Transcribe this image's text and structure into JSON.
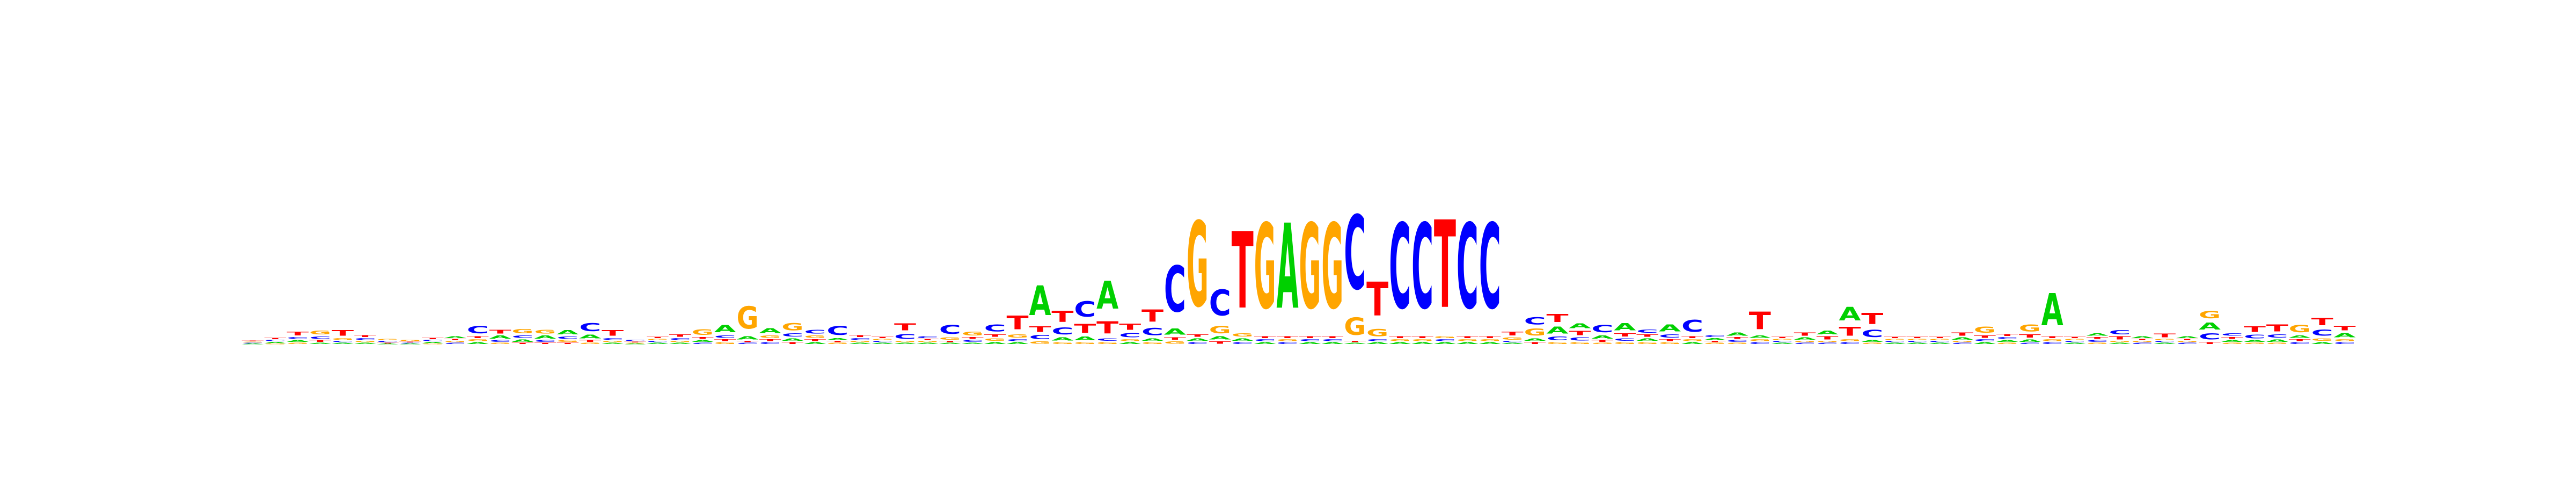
{
  "chart_data": {
    "type": "sequence-logo",
    "title": "",
    "xlabel": "",
    "ylabel": "",
    "alphabet": [
      "A",
      "C",
      "G",
      "T"
    ],
    "colors": {
      "A": "#00d000",
      "C": "#0000ff",
      "G": "#ffa500",
      "T": "#ff0000"
    },
    "ylim": [
      0,
      2
    ],
    "grid": false,
    "axes_visible": false,
    "positions": [
      {
        "pos": 1,
        "heights": {
          "A": 0.01,
          "C": 0.01,
          "G": 0.01,
          "T": 0.01
        }
      },
      {
        "pos": 2,
        "heights": {
          "A": 0.02,
          "C": 0.02,
          "G": 0.01,
          "T": 0.02
        }
      },
      {
        "pos": 3,
        "heights": {
          "A": 0.03,
          "C": 0.03,
          "G": 0.02,
          "T": 0.06
        }
      },
      {
        "pos": 4,
        "heights": {
          "A": 0.02,
          "C": 0.04,
          "G": 0.06,
          "T": 0.03
        }
      },
      {
        "pos": 5,
        "heights": {
          "A": 0.02,
          "C": 0.02,
          "G": 0.03,
          "T": 0.09
        }
      },
      {
        "pos": 6,
        "heights": {
          "A": 0.02,
          "C": 0.03,
          "G": 0.02,
          "T": 0.03
        }
      },
      {
        "pos": 7,
        "heights": {
          "A": 0.01,
          "C": 0.02,
          "G": 0.02,
          "T": 0.01
        }
      },
      {
        "pos": 8,
        "heights": {
          "A": 0.01,
          "C": 0.01,
          "G": 0.02,
          "T": 0.01
        }
      },
      {
        "pos": 9,
        "heights": {
          "A": 0.02,
          "C": 0.02,
          "G": 0.01,
          "T": 0.02
        }
      },
      {
        "pos": 10,
        "heights": {
          "A": 0.03,
          "C": 0.02,
          "G": 0.02,
          "T": 0.02
        }
      },
      {
        "pos": 11,
        "heights": {
          "A": 0.03,
          "C": 0.12,
          "G": 0.03,
          "T": 0.03
        }
      },
      {
        "pos": 12,
        "heights": {
          "A": 0.05,
          "C": 0.03,
          "G": 0.02,
          "T": 0.06
        }
      },
      {
        "pos": 13,
        "heights": {
          "A": 0.04,
          "C": 0.04,
          "G": 0.07,
          "T": 0.02
        }
      },
      {
        "pos": 14,
        "heights": {
          "A": 0.05,
          "C": 0.03,
          "G": 0.06,
          "T": 0.02
        }
      },
      {
        "pos": 15,
        "heights": {
          "A": 0.07,
          "C": 0.04,
          "G": 0.03,
          "T": 0.02
        }
      },
      {
        "pos": 16,
        "heights": {
          "A": 0.06,
          "C": 0.13,
          "G": 0.02,
          "T": 0.03
        }
      },
      {
        "pos": 17,
        "heights": {
          "A": 0.02,
          "C": 0.03,
          "G": 0.02,
          "T": 0.09
        }
      },
      {
        "pos": 18,
        "heights": {
          "A": 0.01,
          "C": 0.02,
          "G": 0.01,
          "T": 0.01
        }
      },
      {
        "pos": 19,
        "heights": {
          "A": 0.02,
          "C": 0.02,
          "G": 0.02,
          "T": 0.02
        }
      },
      {
        "pos": 20,
        "heights": {
          "A": 0.02,
          "C": 0.03,
          "G": 0.02,
          "T": 0.04
        }
      },
      {
        "pos": 21,
        "heights": {
          "A": 0.03,
          "C": 0.02,
          "G": 0.09,
          "T": 0.03
        }
      },
      {
        "pos": 22,
        "heights": {
          "A": 0.12,
          "C": 0.04,
          "G": 0.03,
          "T": 0.03
        }
      },
      {
        "pos": 23,
        "heights": {
          "A": 0.05,
          "C": 0.02,
          "G": 0.36,
          "T": 0.02
        }
      },
      {
        "pos": 24,
        "heights": {
          "A": 0.08,
          "C": 0.03,
          "G": 0.04,
          "T": 0.03
        }
      },
      {
        "pos": 25,
        "heights": {
          "A": 0.04,
          "C": 0.05,
          "G": 0.12,
          "T": 0.03
        }
      },
      {
        "pos": 26,
        "heights": {
          "A": 0.03,
          "C": 0.06,
          "G": 0.04,
          "T": 0.03
        }
      },
      {
        "pos": 27,
        "heights": {
          "A": 0.03,
          "C": 0.14,
          "G": 0.02,
          "T": 0.02
        }
      },
      {
        "pos": 28,
        "heights": {
          "A": 0.02,
          "C": 0.03,
          "G": 0.02,
          "T": 0.03
        }
      },
      {
        "pos": 29,
        "heights": {
          "A": 0.02,
          "C": 0.02,
          "G": 0.02,
          "T": 0.02
        }
      },
      {
        "pos": 30,
        "heights": {
          "A": 0.02,
          "C": 0.08,
          "G": 0.02,
          "T": 0.11
        }
      },
      {
        "pos": 31,
        "heights": {
          "A": 0.02,
          "C": 0.03,
          "G": 0.02,
          "T": 0.02
        }
      },
      {
        "pos": 32,
        "heights": {
          "A": 0.02,
          "C": 0.14,
          "G": 0.04,
          "T": 0.02
        }
      },
      {
        "pos": 33,
        "heights": {
          "A": 0.02,
          "C": 0.03,
          "G": 0.06,
          "T": 0.03
        }
      },
      {
        "pos": 34,
        "heights": {
          "A": 0.03,
          "C": 0.11,
          "G": 0.04,
          "T": 0.04
        }
      },
      {
        "pos": 35,
        "heights": {
          "A": 0.03,
          "C": 0.03,
          "G": 0.05,
          "T": 0.22
        }
      },
      {
        "pos": 36,
        "heights": {
          "A": 0.48,
          "C": 0.07,
          "G": 0.04,
          "T": 0.09
        }
      },
      {
        "pos": 37,
        "heights": {
          "A": 0.05,
          "C": 0.11,
          "G": 0.03,
          "T": 0.18
        }
      },
      {
        "pos": 38,
        "heights": {
          "A": 0.06,
          "C": 0.25,
          "G": 0.03,
          "T": 0.14
        }
      },
      {
        "pos": 39,
        "heights": {
          "A": 0.45,
          "C": 0.04,
          "G": 0.03,
          "T": 0.2
        }
      },
      {
        "pos": 40,
        "heights": {
          "A": 0.03,
          "C": 0.07,
          "G": 0.03,
          "T": 0.1
        }
      },
      {
        "pos": 41,
        "heights": {
          "A": 0.04,
          "C": 0.12,
          "G": 0.03,
          "T": 0.2
        }
      },
      {
        "pos": 42,
        "heights": {
          "A": 0.1,
          "C": 0.75,
          "G": 0.04,
          "T": 0.04
        }
      },
      {
        "pos": 43,
        "heights": {
          "A": 0.04,
          "C": 0.03,
          "G": 1.38,
          "T": 0.04
        }
      },
      {
        "pos": 44,
        "heights": {
          "A": 0.05,
          "C": 0.42,
          "G": 0.12,
          "T": 0.04
        }
      },
      {
        "pos": 45,
        "heights": {
          "A": 0.04,
          "C": 0.03,
          "G": 0.05,
          "T": 1.24
        }
      },
      {
        "pos": 46,
        "heights": {
          "A": 0.03,
          "C": 0.03,
          "G": 1.38,
          "T": 0.03
        }
      },
      {
        "pos": 47,
        "heights": {
          "A": 1.38,
          "C": 0.03,
          "G": 0.03,
          "T": 0.03
        }
      },
      {
        "pos": 48,
        "heights": {
          "A": 0.03,
          "C": 0.03,
          "G": 1.38,
          "T": 0.03
        }
      },
      {
        "pos": 49,
        "heights": {
          "A": 0.03,
          "C": 0.03,
          "G": 1.38,
          "T": 0.03
        }
      },
      {
        "pos": 50,
        "heights": {
          "A": 0.02,
          "C": 1.2,
          "G": 0.28,
          "T": 0.02
        }
      },
      {
        "pos": 51,
        "heights": {
          "A": 0.03,
          "C": 0.03,
          "G": 0.12,
          "T": 0.55
        }
      },
      {
        "pos": 52,
        "heights": {
          "A": 0.03,
          "C": 1.38,
          "G": 0.03,
          "T": 0.03
        }
      },
      {
        "pos": 53,
        "heights": {
          "A": 0.03,
          "C": 1.38,
          "G": 0.03,
          "T": 0.03
        }
      },
      {
        "pos": 54,
        "heights": {
          "A": 0.03,
          "C": 0.03,
          "G": 0.03,
          "T": 1.42
        }
      },
      {
        "pos": 55,
        "heights": {
          "A": 0.03,
          "C": 1.38,
          "G": 0.03,
          "T": 0.03
        }
      },
      {
        "pos": 56,
        "heights": {
          "A": 0.03,
          "C": 1.38,
          "G": 0.03,
          "T": 0.03
        }
      },
      {
        "pos": 57,
        "heights": {
          "A": 0.02,
          "C": 0.02,
          "G": 0.04,
          "T": 0.06
        }
      },
      {
        "pos": 58,
        "heights": {
          "A": 0.04,
          "C": 0.12,
          "G": 0.11,
          "T": 0.03
        }
      },
      {
        "pos": 59,
        "heights": {
          "A": 0.11,
          "C": 0.06,
          "G": 0.03,
          "T": 0.13
        }
      },
      {
        "pos": 60,
        "heights": {
          "A": 0.08,
          "C": 0.05,
          "G": 0.03,
          "T": 0.07
        }
      },
      {
        "pos": 61,
        "heights": {
          "A": 0.05,
          "C": 0.12,
          "G": 0.02,
          "T": 0.03
        }
      },
      {
        "pos": 62,
        "heights": {
          "A": 0.12,
          "C": 0.04,
          "G": 0.03,
          "T": 0.05
        }
      },
      {
        "pos": 63,
        "heights": {
          "A": 0.04,
          "C": 0.05,
          "G": 0.03,
          "T": 0.04
        }
      },
      {
        "pos": 64,
        "heights": {
          "A": 0.11,
          "C": 0.05,
          "G": 0.03,
          "T": 0.03
        }
      },
      {
        "pos": 65,
        "heights": {
          "A": 0.03,
          "C": 0.19,
          "G": 0.03,
          "T": 0.03
        }
      },
      {
        "pos": 66,
        "heights": {
          "A": 0.03,
          "C": 0.03,
          "G": 0.02,
          "T": 0.02
        }
      },
      {
        "pos": 67,
        "heights": {
          "A": 0.05,
          "C": 0.03,
          "G": 0.02,
          "T": 0.03
        }
      },
      {
        "pos": 68,
        "heights": {
          "A": 0.04,
          "C": 0.03,
          "G": 0.03,
          "T": 0.28
        }
      },
      {
        "pos": 69,
        "heights": {
          "A": 0.02,
          "C": 0.02,
          "G": 0.02,
          "T": 0.02
        }
      },
      {
        "pos": 70,
        "heights": {
          "A": 0.04,
          "C": 0.02,
          "G": 0.02,
          "T": 0.05
        }
      },
      {
        "pos": 71,
        "heights": {
          "A": 0.06,
          "C": 0.02,
          "G": 0.02,
          "T": 0.05
        }
      },
      {
        "pos": 72,
        "heights": {
          "A": 0.22,
          "C": 0.03,
          "G": 0.03,
          "T": 0.14
        }
      },
      {
        "pos": 73,
        "heights": {
          "A": 0.03,
          "C": 0.12,
          "G": 0.02,
          "T": 0.18
        }
      },
      {
        "pos": 74,
        "heights": {
          "A": 0.02,
          "C": 0.02,
          "G": 0.02,
          "T": 0.02
        }
      },
      {
        "pos": 75,
        "heights": {
          "A": 0.02,
          "C": 0.02,
          "G": 0.02,
          "T": 0.02
        }
      },
      {
        "pos": 76,
        "heights": {
          "A": 0.02,
          "C": 0.02,
          "G": 0.02,
          "T": 0.02
        }
      },
      {
        "pos": 77,
        "heights": {
          "A": 0.04,
          "C": 0.02,
          "G": 0.02,
          "T": 0.05
        }
      },
      {
        "pos": 78,
        "heights": {
          "A": 0.03,
          "C": 0.03,
          "G": 0.1,
          "T": 0.04
        }
      },
      {
        "pos": 79,
        "heights": {
          "A": 0.03,
          "C": 0.03,
          "G": 0.02,
          "T": 0.03
        }
      },
      {
        "pos": 80,
        "heights": {
          "A": 0.04,
          "C": 0.02,
          "G": 0.11,
          "T": 0.05
        }
      },
      {
        "pos": 81,
        "heights": {
          "A": 0.52,
          "C": 0.03,
          "G": 0.03,
          "T": 0.03
        }
      },
      {
        "pos": 82,
        "heights": {
          "A": 0.02,
          "C": 0.02,
          "G": 0.02,
          "T": 0.02
        }
      },
      {
        "pos": 83,
        "heights": {
          "A": 0.04,
          "C": 0.03,
          "G": 0.02,
          "T": 0.03
        }
      },
      {
        "pos": 84,
        "heights": {
          "A": 0.02,
          "C": 0.07,
          "G": 0.02,
          "T": 0.05
        }
      },
      {
        "pos": 85,
        "heights": {
          "A": 0.03,
          "C": 0.02,
          "G": 0.02,
          "T": 0.02
        }
      },
      {
        "pos": 86,
        "heights": {
          "A": 0.02,
          "C": 0.02,
          "G": 0.02,
          "T": 0.06
        }
      },
      {
        "pos": 87,
        "heights": {
          "A": 0.03,
          "C": 0.02,
          "G": 0.02,
          "T": 0.02
        }
      },
      {
        "pos": 88,
        "heights": {
          "A": 0.11,
          "C": 0.1,
          "G": 0.12,
          "T": 0.03
        }
      },
      {
        "pos": 89,
        "heights": {
          "A": 0.03,
          "C": 0.04,
          "G": 0.02,
          "T": 0.03
        }
      },
      {
        "pos": 90,
        "heights": {
          "A": 0.03,
          "C": 0.06,
          "G": 0.02,
          "T": 0.09
        }
      },
      {
        "pos": 91,
        "heights": {
          "A": 0.04,
          "C": 0.05,
          "G": 0.02,
          "T": 0.11
        }
      },
      {
        "pos": 92,
        "heights": {
          "A": 0.04,
          "C": 0.03,
          "G": 0.12,
          "T": 0.03
        }
      },
      {
        "pos": 93,
        "heights": {
          "A": 0.03,
          "C": 0.1,
          "G": 0.04,
          "T": 0.12
        }
      },
      {
        "pos": 94,
        "heights": {
          "A": 0.07,
          "C": 0.03,
          "G": 0.03,
          "T": 0.07
        }
      }
    ]
  }
}
